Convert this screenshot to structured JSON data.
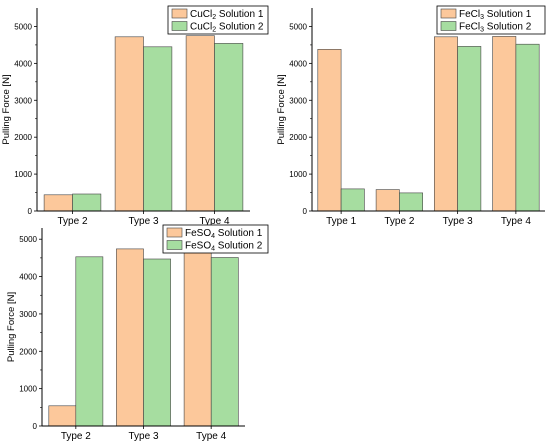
{
  "colors": {
    "solution_1": "#fcc89b",
    "solution_2": "#a6dda0",
    "edge": "#444444"
  },
  "chart_data": [
    {
      "type": "bar",
      "ylabel": "Pulling Force [N]",
      "ylim": [
        0,
        5500
      ],
      "yticks": [
        0,
        1000,
        2000,
        3000,
        4000,
        5000
      ],
      "categories": [
        "Type 2",
        "Type 3",
        "Type 4"
      ],
      "legend_position": "top-right",
      "series": [
        {
          "name_base": "CuCl",
          "name_sub": "2",
          "name_rest": " Solution 1",
          "values": [
            440,
            4720,
            4750
          ]
        },
        {
          "name_base": "CuCl",
          "name_sub": "2",
          "name_rest": " Solution 2",
          "values": [
            460,
            4450,
            4540
          ]
        }
      ]
    },
    {
      "type": "bar",
      "ylabel": "Pulling Force [N]",
      "ylim": [
        0,
        5500
      ],
      "yticks": [
        0,
        1000,
        2000,
        3000,
        4000,
        5000
      ],
      "categories": [
        "Type 1",
        "Type 2",
        "Type 3",
        "Type 4"
      ],
      "legend_position": "top-right",
      "series": [
        {
          "name_base": "FeCl",
          "name_sub": "3",
          "name_rest": " Solution 1",
          "values": [
            4380,
            580,
            4720,
            4730
          ]
        },
        {
          "name_base": "FeCl",
          "name_sub": "3",
          "name_rest": " Solution 2",
          "values": [
            600,
            490,
            4460,
            4520
          ]
        }
      ]
    },
    {
      "type": "bar",
      "ylabel": "Pulling Force [N]",
      "ylim": [
        0,
        5300
      ],
      "yticks": [
        0,
        1000,
        2000,
        3000,
        4000,
        5000
      ],
      "categories": [
        "Type 2",
        "Type 3",
        "Type 4"
      ],
      "legend_position": "top-right",
      "series": [
        {
          "name_base": "FeSO",
          "name_sub": "4",
          "name_rest": " Solution 1",
          "values": [
            540,
            4740,
            4710
          ]
        },
        {
          "name_base": "FeSO",
          "name_sub": "4",
          "name_rest": " Solution 2",
          "values": [
            4530,
            4470,
            4510
          ]
        }
      ]
    }
  ]
}
